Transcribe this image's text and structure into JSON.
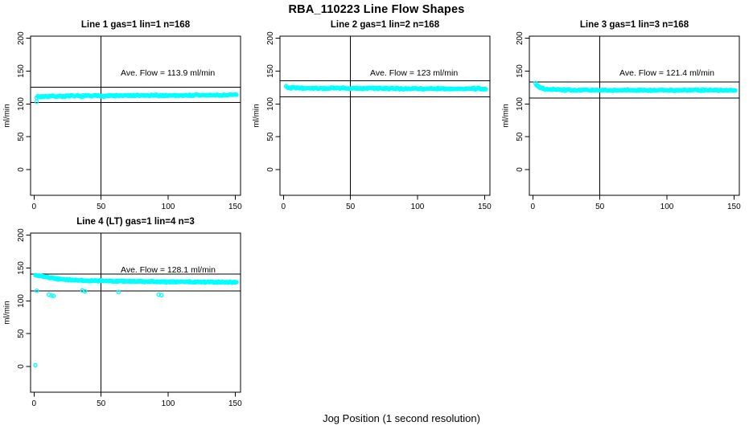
{
  "header": {
    "title": "RBA_110223  Line Flow Shapes"
  },
  "footer": {
    "xlabel": "Jog Position (1 second resolution)"
  },
  "style": {
    "background": "#FFFFFF",
    "point_color": "#00FFFF",
    "line_color": "#000000",
    "marker": "open-circle"
  },
  "chart_data": [
    {
      "type": "scatter",
      "title": "Line 1 gas=1 lin=1 n=168",
      "ylabel": "ml/min",
      "ave_flow": 113.9,
      "ave_label": "Ave. Flow =  113.9  ml/min",
      "n_label": 168,
      "x_ticks": [
        0,
        50,
        100,
        150
      ],
      "y_ticks": [
        0,
        50,
        100,
        150,
        200
      ],
      "xlim": [
        -2.6,
        154
      ],
      "ylim": [
        -39,
        203
      ],
      "vline_x": 50,
      "hlines": [
        125.3,
        102.5
      ],
      "series": {
        "x_from": 2,
        "x_to": 151,
        "n": 205,
        "jitter": 1.5,
        "profile": [
          [
            2,
            110.8
          ],
          [
            8,
            111.6
          ],
          [
            50,
            112.4
          ],
          [
            151,
            113.6
          ]
        ],
        "outliers": [
          [
            2,
            103.5
          ]
        ]
      }
    },
    {
      "type": "scatter",
      "title": "Line 2 gas=1 lin=2 n=168",
      "ylabel": "ml/min",
      "ave_flow": 123,
      "ave_label": "Ave. Flow =  123  ml/min",
      "n_label": 168,
      "x_ticks": [
        0,
        50,
        100,
        150
      ],
      "y_ticks": [
        0,
        50,
        100,
        150,
        200
      ],
      "xlim": [
        -2.6,
        154
      ],
      "ylim": [
        -39,
        203
      ],
      "vline_x": 50,
      "hlines": [
        135.3,
        110.7
      ],
      "series": {
        "x_from": 2,
        "x_to": 151,
        "n": 205,
        "jitter": 1.5,
        "profile": [
          [
            2,
            126.8
          ],
          [
            5,
            124.6
          ],
          [
            15,
            124.0
          ],
          [
            80,
            123.6
          ],
          [
            151,
            123.2
          ]
        ],
        "outliers": []
      }
    },
    {
      "type": "scatter",
      "title": "Line 3 gas=1 lin=3 n=168",
      "ylabel": "ml/min",
      "ave_flow": 121.4,
      "ave_label": "Ave. Flow =  121.4  ml/min",
      "n_label": 168,
      "x_ticks": [
        0,
        50,
        100,
        150
      ],
      "y_ticks": [
        0,
        50,
        100,
        150,
        200
      ],
      "xlim": [
        -2.6,
        154
      ],
      "ylim": [
        -39,
        203
      ],
      "vline_x": 50,
      "hlines": [
        133.5,
        109.3
      ],
      "series": {
        "x_from": 2,
        "x_to": 151,
        "n": 205,
        "jitter": 1.4,
        "profile": [
          [
            2,
            132.5
          ],
          [
            3,
            128.5
          ],
          [
            5,
            125.0
          ],
          [
            9,
            122.5
          ],
          [
            25,
            121.2
          ],
          [
            151,
            120.8
          ]
        ],
        "outliers": []
      }
    },
    {
      "type": "scatter",
      "title": "Line 4 (LT) gas=1 lin=4 n=3",
      "ylabel": "ml/min",
      "ave_flow": 128.1,
      "ave_label": "Ave. Flow =  128.1  ml/min",
      "n_label": 3,
      "x_ticks": [
        0,
        50,
        100,
        150
      ],
      "y_ticks": [
        0,
        50,
        100,
        150,
        200
      ],
      "xlim": [
        -2.6,
        154
      ],
      "ylim": [
        -39,
        203
      ],
      "vline_x": 50,
      "hlines": [
        140.9,
        115.3
      ],
      "series": {
        "x_from": 1,
        "x_to": 151,
        "n": 270,
        "jitter": 1.2,
        "profile": [
          [
            1,
            139.5
          ],
          [
            5,
            138.0
          ],
          [
            10,
            136.0
          ],
          [
            16,
            134.0
          ],
          [
            24,
            132.3
          ],
          [
            35,
            131.0
          ],
          [
            55,
            130.2
          ],
          [
            90,
            129.4
          ],
          [
            125,
            128.8
          ],
          [
            151,
            128.3
          ]
        ],
        "outliers": [
          [
            1,
            2
          ],
          [
            2,
            115.5
          ],
          [
            11,
            109.5
          ],
          [
            13,
            108
          ],
          [
            14.5,
            107.5
          ],
          [
            36,
            116
          ],
          [
            38,
            114.5
          ],
          [
            63,
            113.5
          ],
          [
            93,
            109.5
          ],
          [
            95,
            108.5
          ]
        ]
      }
    }
  ]
}
